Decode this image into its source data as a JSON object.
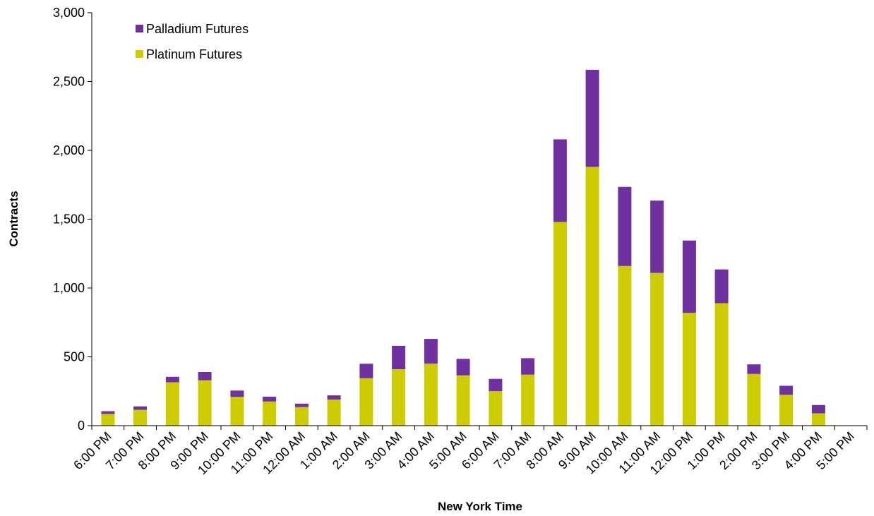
{
  "chart_data": {
    "type": "bar",
    "stacked": true,
    "title": "",
    "xlabel": "New York Time",
    "ylabel": "Contracts",
    "ylim": [
      0,
      3000
    ],
    "yticks": [
      "0",
      "500",
      "1,000",
      "1,500",
      "2,000",
      "2,500",
      "3,000"
    ],
    "grid": false,
    "legend_position": "top-left",
    "categories": [
      "6:00 PM",
      "7:00 PM",
      "8:00 PM",
      "9:00 PM",
      "10:00 PM",
      "11:00 PM",
      "12:00 AM",
      "1:00 AM",
      "2:00 AM",
      "3:00 AM",
      "4:00 AM",
      "5:00 AM",
      "6:00 AM",
      "7:00 AM",
      "8:00 AM",
      "9:00 AM",
      "10:00 AM",
      "11:00 AM",
      "12:00 PM",
      "1:00 PM",
      "2:00 PM",
      "3:00 PM",
      "4:00 PM",
      "5:00 PM"
    ],
    "series": [
      {
        "name": "Platinum Futures",
        "color": "#cccc00",
        "values": [
          85,
          115,
          315,
          330,
          210,
          175,
          135,
          190,
          345,
          410,
          450,
          365,
          250,
          370,
          1480,
          1880,
          1160,
          1110,
          820,
          890,
          375,
          225,
          90,
          0
        ]
      },
      {
        "name": "Palladium Futures",
        "color": "#7030a0",
        "values": [
          20,
          25,
          40,
          60,
          45,
          35,
          25,
          30,
          105,
          170,
          180,
          120,
          90,
          120,
          600,
          705,
          575,
          525,
          525,
          245,
          70,
          65,
          60,
          0
        ]
      }
    ],
    "legend": [
      "Palladium Futures",
      "Platinum Futures"
    ]
  }
}
